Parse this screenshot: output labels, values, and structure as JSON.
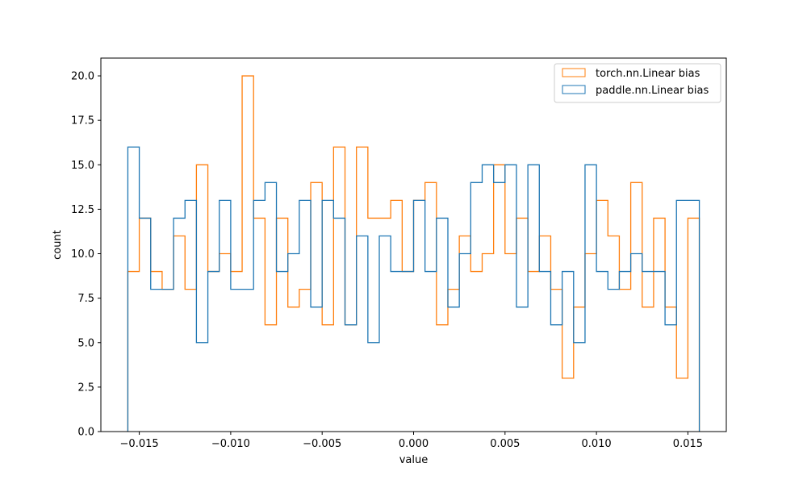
{
  "chart_data": {
    "type": "histogram-step",
    "xlabel": "value",
    "ylabel": "count",
    "xlim": [
      -0.0171,
      0.0171
    ],
    "ylim": [
      0,
      21.0
    ],
    "grid": false,
    "legend_position": "top-right",
    "bin_edges": [
      -0.015625,
      -0.015,
      -0.014375,
      -0.01375,
      -0.013125,
      -0.0125,
      -0.011875,
      -0.01125,
      -0.010625,
      -0.01,
      -0.009375,
      -0.00875,
      -0.008125,
      -0.0075,
      -0.006875,
      -0.00625,
      -0.005625,
      -0.005,
      -0.004375,
      -0.00375,
      -0.003125,
      -0.0025,
      -0.001875,
      -0.00125,
      -0.000625,
      0.0,
      0.000625,
      0.00125,
      0.001875,
      0.0025,
      0.003125,
      0.00375,
      0.004375,
      0.005,
      0.005625,
      0.00625,
      0.006875,
      0.0075,
      0.008125,
      0.00875,
      0.009375,
      0.01,
      0.010625,
      0.01125,
      0.011875,
      0.0125,
      0.013125,
      0.01375,
      0.014375,
      0.015,
      0.015625
    ],
    "x_ticks": [
      {
        "value": -0.015,
        "label": "−0.015"
      },
      {
        "value": -0.01,
        "label": "−0.010"
      },
      {
        "value": -0.005,
        "label": "−0.005"
      },
      {
        "value": 0.0,
        "label": "0.000"
      },
      {
        "value": 0.005,
        "label": "0.005"
      },
      {
        "value": 0.01,
        "label": "0.010"
      },
      {
        "value": 0.015,
        "label": "0.015"
      }
    ],
    "y_ticks": [
      {
        "value": 0.0,
        "label": "0.0"
      },
      {
        "value": 2.5,
        "label": "2.5"
      },
      {
        "value": 5.0,
        "label": "5.0"
      },
      {
        "value": 7.5,
        "label": "7.5"
      },
      {
        "value": 10.0,
        "label": "10.0"
      },
      {
        "value": 12.5,
        "label": "12.5"
      },
      {
        "value": 15.0,
        "label": "15.0"
      },
      {
        "value": 17.5,
        "label": "17.5"
      },
      {
        "value": 20.0,
        "label": "20.0"
      }
    ],
    "series": [
      {
        "name": "torch.nn.Linear bias",
        "color": "#ff7f0e",
        "counts": [
          9,
          12,
          9,
          8,
          11,
          8,
          15,
          9,
          10,
          9,
          20,
          12,
          6,
          12,
          7,
          8,
          14,
          6,
          16,
          6,
          16,
          12,
          12,
          13,
          9,
          13,
          14,
          6,
          8,
          11,
          9,
          10,
          15,
          10,
          12,
          9,
          11,
          8,
          3,
          7,
          10,
          13,
          11,
          8,
          14,
          7,
          12,
          7,
          3,
          12
        ]
      },
      {
        "name": "paddle.nn.Linear bias",
        "color": "#1f77b4",
        "counts": [
          16,
          12,
          8,
          8,
          12,
          13,
          5,
          9,
          13,
          8,
          8,
          13,
          14,
          9,
          10,
          13,
          7,
          13,
          12,
          6,
          11,
          5,
          11,
          9,
          9,
          13,
          9,
          12,
          7,
          10,
          14,
          15,
          14,
          15,
          7,
          15,
          9,
          6,
          9,
          5,
          15,
          9,
          8,
          9,
          10,
          9,
          9,
          6,
          13,
          13
        ]
      }
    ]
  }
}
